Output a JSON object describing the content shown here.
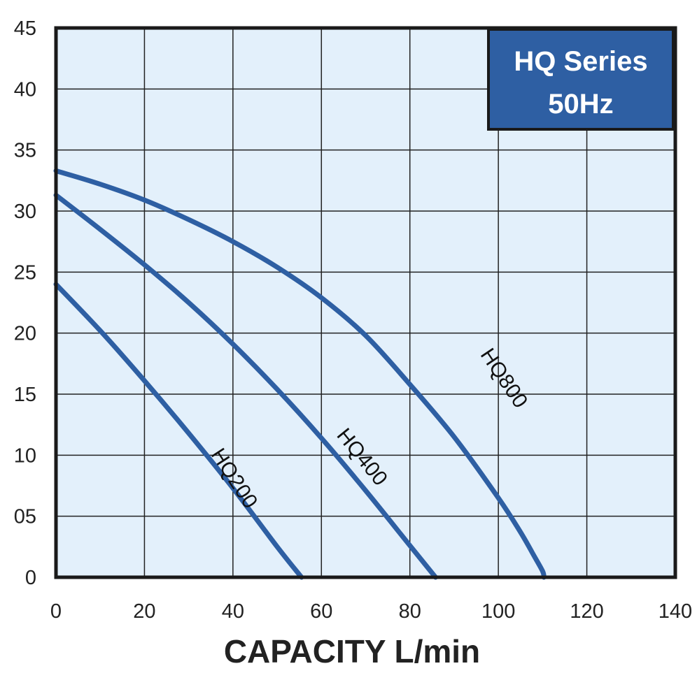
{
  "chart_data": {
    "type": "line",
    "title": "",
    "xlabel": "CAPACITY L/min",
    "ylabel": "",
    "xlim": [
      0,
      140
    ],
    "ylim": [
      0,
      45
    ],
    "grid": true,
    "x_ticks": [
      "0",
      "20",
      "40",
      "60",
      "80",
      "100",
      "120",
      "140"
    ],
    "y_ticks": [
      "0",
      "05",
      "10",
      "15",
      "20",
      "25",
      "30",
      "35",
      "40",
      "45"
    ],
    "x_tick_values": [
      0,
      20,
      40,
      60,
      80,
      100,
      120,
      140
    ],
    "y_tick_values": [
      0,
      5,
      10,
      15,
      20,
      25,
      30,
      35,
      40,
      45
    ],
    "legend_box": {
      "lines": [
        "HQ Series",
        "50Hz"
      ],
      "placement": "top-right"
    },
    "colors": {
      "plot_bg": "#e3f0fb",
      "line": "#2e5fa3",
      "legend_bg": "#2e5fa3",
      "grid": "#222222"
    },
    "series": [
      {
        "name": "HQ200",
        "x": [
          0,
          10,
          20,
          30,
          40,
          50,
          55.5
        ],
        "y": [
          24,
          20.2,
          16.1,
          11.8,
          7.3,
          2.5,
          0
        ]
      },
      {
        "name": "HQ400",
        "x": [
          0,
          10,
          20,
          30,
          40,
          50,
          60,
          70,
          80,
          85.8
        ],
        "y": [
          31.3,
          28.5,
          25.6,
          22.5,
          19.1,
          15.4,
          11.4,
          7.1,
          2.6,
          0
        ]
      },
      {
        "name": "HQ800",
        "x": [
          0,
          10,
          20,
          30,
          40,
          50,
          60,
          70,
          80,
          90,
          100,
          105,
          108,
          110,
          110.3
        ],
        "y": [
          33.3,
          32.2,
          30.9,
          29.3,
          27.5,
          25.4,
          22.9,
          19.8,
          15.8,
          11.5,
          6.5,
          3.7,
          1.8,
          0.5,
          0
        ]
      }
    ]
  }
}
